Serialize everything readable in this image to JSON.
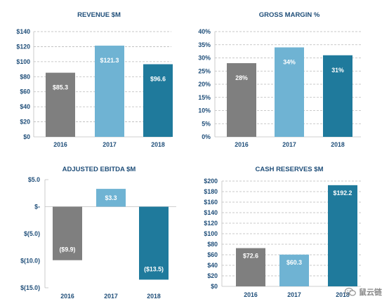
{
  "colors": {
    "c2016": "#7f7f7f",
    "c2017": "#6fb3d3",
    "c2018": "#1f7a9c",
    "title": "#1f4e79"
  },
  "watermark": {
    "text": "鼠云链",
    "icon": "wechat-icon"
  },
  "chart_data": [
    {
      "type": "bar",
      "title": "REVENUE $M",
      "categories": [
        "2016",
        "2017",
        "2018"
      ],
      "values": [
        85.3,
        121.3,
        96.6
      ],
      "value_labels": [
        "$85.3",
        "$121.3",
        "$96.6"
      ],
      "yticks": [
        0,
        20,
        40,
        60,
        80,
        100,
        120,
        140
      ],
      "ytick_labels": [
        "$0",
        "$20",
        "$40",
        "$60",
        "$80",
        "$100",
        "$120",
        "$140"
      ],
      "ylim": [
        0,
        140
      ],
      "grid": true
    },
    {
      "type": "bar",
      "title": "GROSS MARGIN %",
      "categories": [
        "2016",
        "2017",
        "2018"
      ],
      "values": [
        28,
        34,
        31
      ],
      "value_labels": [
        "28%",
        "34%",
        "31%"
      ],
      "yticks": [
        0,
        5,
        10,
        15,
        20,
        25,
        30,
        35,
        40
      ],
      "ytick_labels": [
        "0%",
        "5%",
        "10%",
        "15%",
        "20%",
        "25%",
        "30%",
        "35%",
        "40%"
      ],
      "ylim": [
        0,
        40
      ],
      "grid": true
    },
    {
      "type": "bar",
      "title": "ADJUSTED EBITDA $M",
      "categories": [
        "2016",
        "2017",
        "2018"
      ],
      "values": [
        -9.9,
        3.3,
        -13.5
      ],
      "value_labels": [
        "($9.9)",
        "$3.3",
        "($13.5)"
      ],
      "yticks": [
        5,
        0,
        -5,
        -10,
        -15
      ],
      "ytick_labels": [
        "$5.0",
        "$-",
        "$(5.0)",
        "$(10.0)",
        "$(15.0)"
      ],
      "ylim": [
        -15,
        5
      ],
      "grid": false
    },
    {
      "type": "bar",
      "title": "CASH RESERVES $M",
      "categories": [
        "2016",
        "2017",
        "2018"
      ],
      "values": [
        72.6,
        60.3,
        192.2
      ],
      "value_labels": [
        "$72.6",
        "$60.3",
        "$192.2"
      ],
      "yticks": [
        0,
        20,
        40,
        60,
        80,
        100,
        120,
        140,
        160,
        180,
        200
      ],
      "ytick_labels": [
        "$0",
        "$20",
        "$40",
        "$60",
        "$80",
        "$100",
        "$120",
        "$140",
        "$160",
        "$180",
        "$200"
      ],
      "ylim": [
        0,
        200
      ],
      "grid": true
    }
  ]
}
